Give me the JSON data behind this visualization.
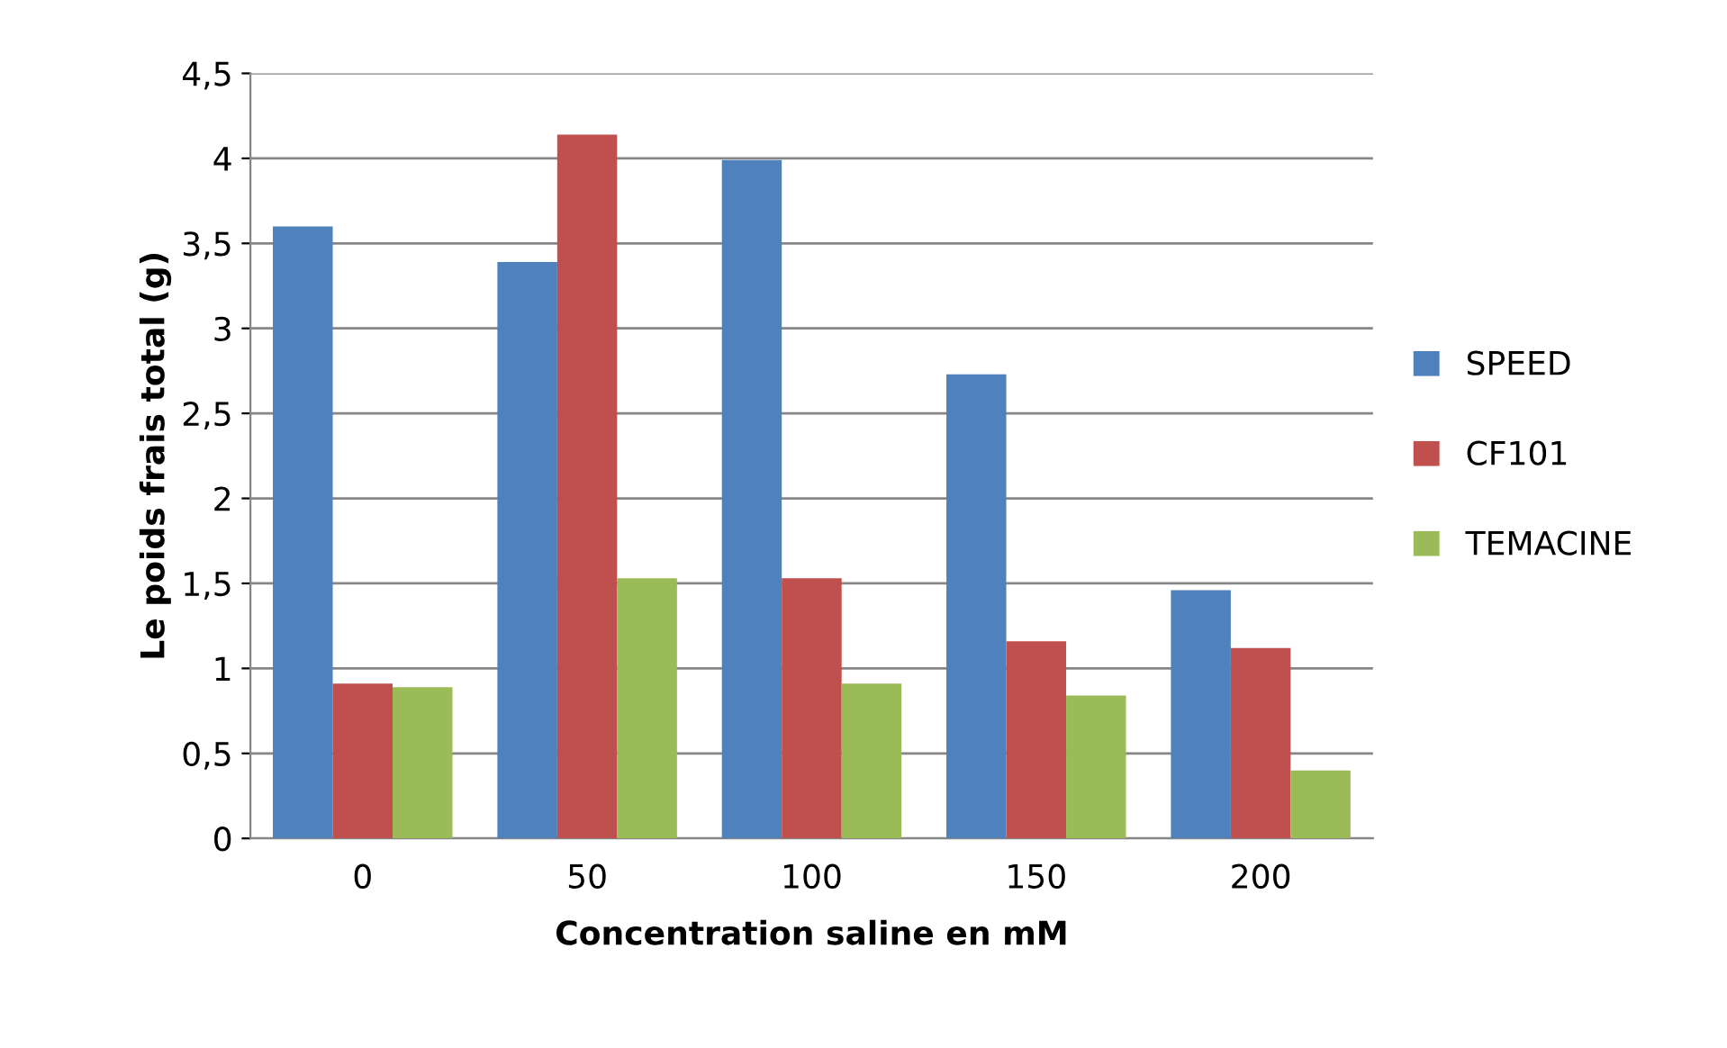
{
  "chart_data": {
    "type": "bar",
    "xlabel": "Concentration saline en mM",
    "ylabel": "Le poids frais total (g)",
    "categories": [
      "0",
      "50",
      "100",
      "150",
      "200"
    ],
    "series": [
      {
        "name": "SPEED",
        "color": "#4f81bd",
        "values": [
          3.6,
          3.39,
          3.99,
          2.73,
          1.46
        ]
      },
      {
        "name": "CF101",
        "color": "#c0504d",
        "values": [
          0.91,
          4.14,
          1.53,
          1.16,
          1.12
        ]
      },
      {
        "name": "TEMACINE",
        "color": "#9bbb59",
        "values": [
          0.89,
          1.53,
          0.91,
          0.84,
          0.4
        ]
      }
    ],
    "ylim": [
      0,
      4.5
    ],
    "yticks": [
      0,
      {
        "value": 0.5,
        "label": "0,5"
      },
      1,
      {
        "value": 1.5,
        "label": "1,5"
      },
      2,
      {
        "value": 2.5,
        "label": "2,5"
      },
      3,
      {
        "value": 3.5,
        "label": "3,5"
      },
      4,
      {
        "value": 4.5,
        "label": "4,5"
      }
    ],
    "grid": "y",
    "legend": "right"
  }
}
